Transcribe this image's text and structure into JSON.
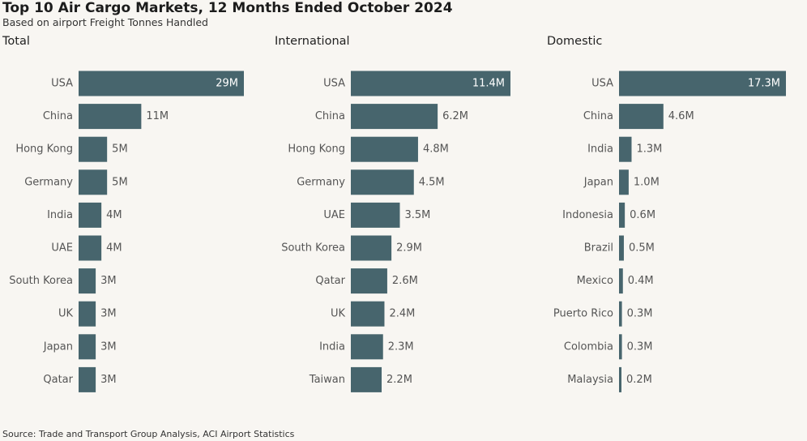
{
  "header": {
    "title": "Top 10 Air Cargo Markets, 12 Months Ended October 2024",
    "subtitle": "Based on airport Freight Tonnes Handled"
  },
  "footer": {
    "source": "Source: Trade and Transport Group Analysis, ACI Airport Statistics"
  },
  "colors": {
    "bar": "#47656d",
    "background": "#f8f6f2"
  },
  "chart_data": [
    {
      "type": "bar",
      "orientation": "horizontal",
      "title": "Total",
      "categories": [
        "USA",
        "China",
        "Hong Kong",
        "Germany",
        "India",
        "UAE",
        "South Korea",
        "UK",
        "Japan",
        "Qatar"
      ],
      "values": [
        29,
        11,
        5,
        5,
        4,
        4,
        3,
        3,
        3,
        3
      ],
      "labels": [
        "29M",
        "11M",
        "5M",
        "5M",
        "4M",
        "4M",
        "3M",
        "3M",
        "3M",
        "3M"
      ],
      "xlim": [
        0,
        29
      ]
    },
    {
      "type": "bar",
      "orientation": "horizontal",
      "title": "International",
      "categories": [
        "USA",
        "China",
        "Hong Kong",
        "Germany",
        "UAE",
        "South Korea",
        "Qatar",
        "UK",
        "India",
        "Taiwan"
      ],
      "values": [
        11.4,
        6.2,
        4.8,
        4.5,
        3.5,
        2.9,
        2.6,
        2.4,
        2.3,
        2.2
      ],
      "labels": [
        "11.4M",
        "6.2M",
        "4.8M",
        "4.5M",
        "3.5M",
        "2.9M",
        "2.6M",
        "2.4M",
        "2.3M",
        "2.2M"
      ],
      "xlim": [
        0,
        11.4
      ]
    },
    {
      "type": "bar",
      "orientation": "horizontal",
      "title": "Domestic",
      "categories": [
        "USA",
        "China",
        "India",
        "Japan",
        "Indonesia",
        "Brazil",
        "Mexico",
        "Puerto Rico",
        "Colombia",
        "Malaysia"
      ],
      "values": [
        17.3,
        4.6,
        1.3,
        1.0,
        0.6,
        0.5,
        0.4,
        0.3,
        0.3,
        0.2
      ],
      "labels": [
        "17.3M",
        "4.6M",
        "1.3M",
        "1.0M",
        "0.6M",
        "0.5M",
        "0.4M",
        "0.3M",
        "0.3M",
        "0.2M"
      ],
      "xlim": [
        0,
        17.3
      ]
    }
  ]
}
